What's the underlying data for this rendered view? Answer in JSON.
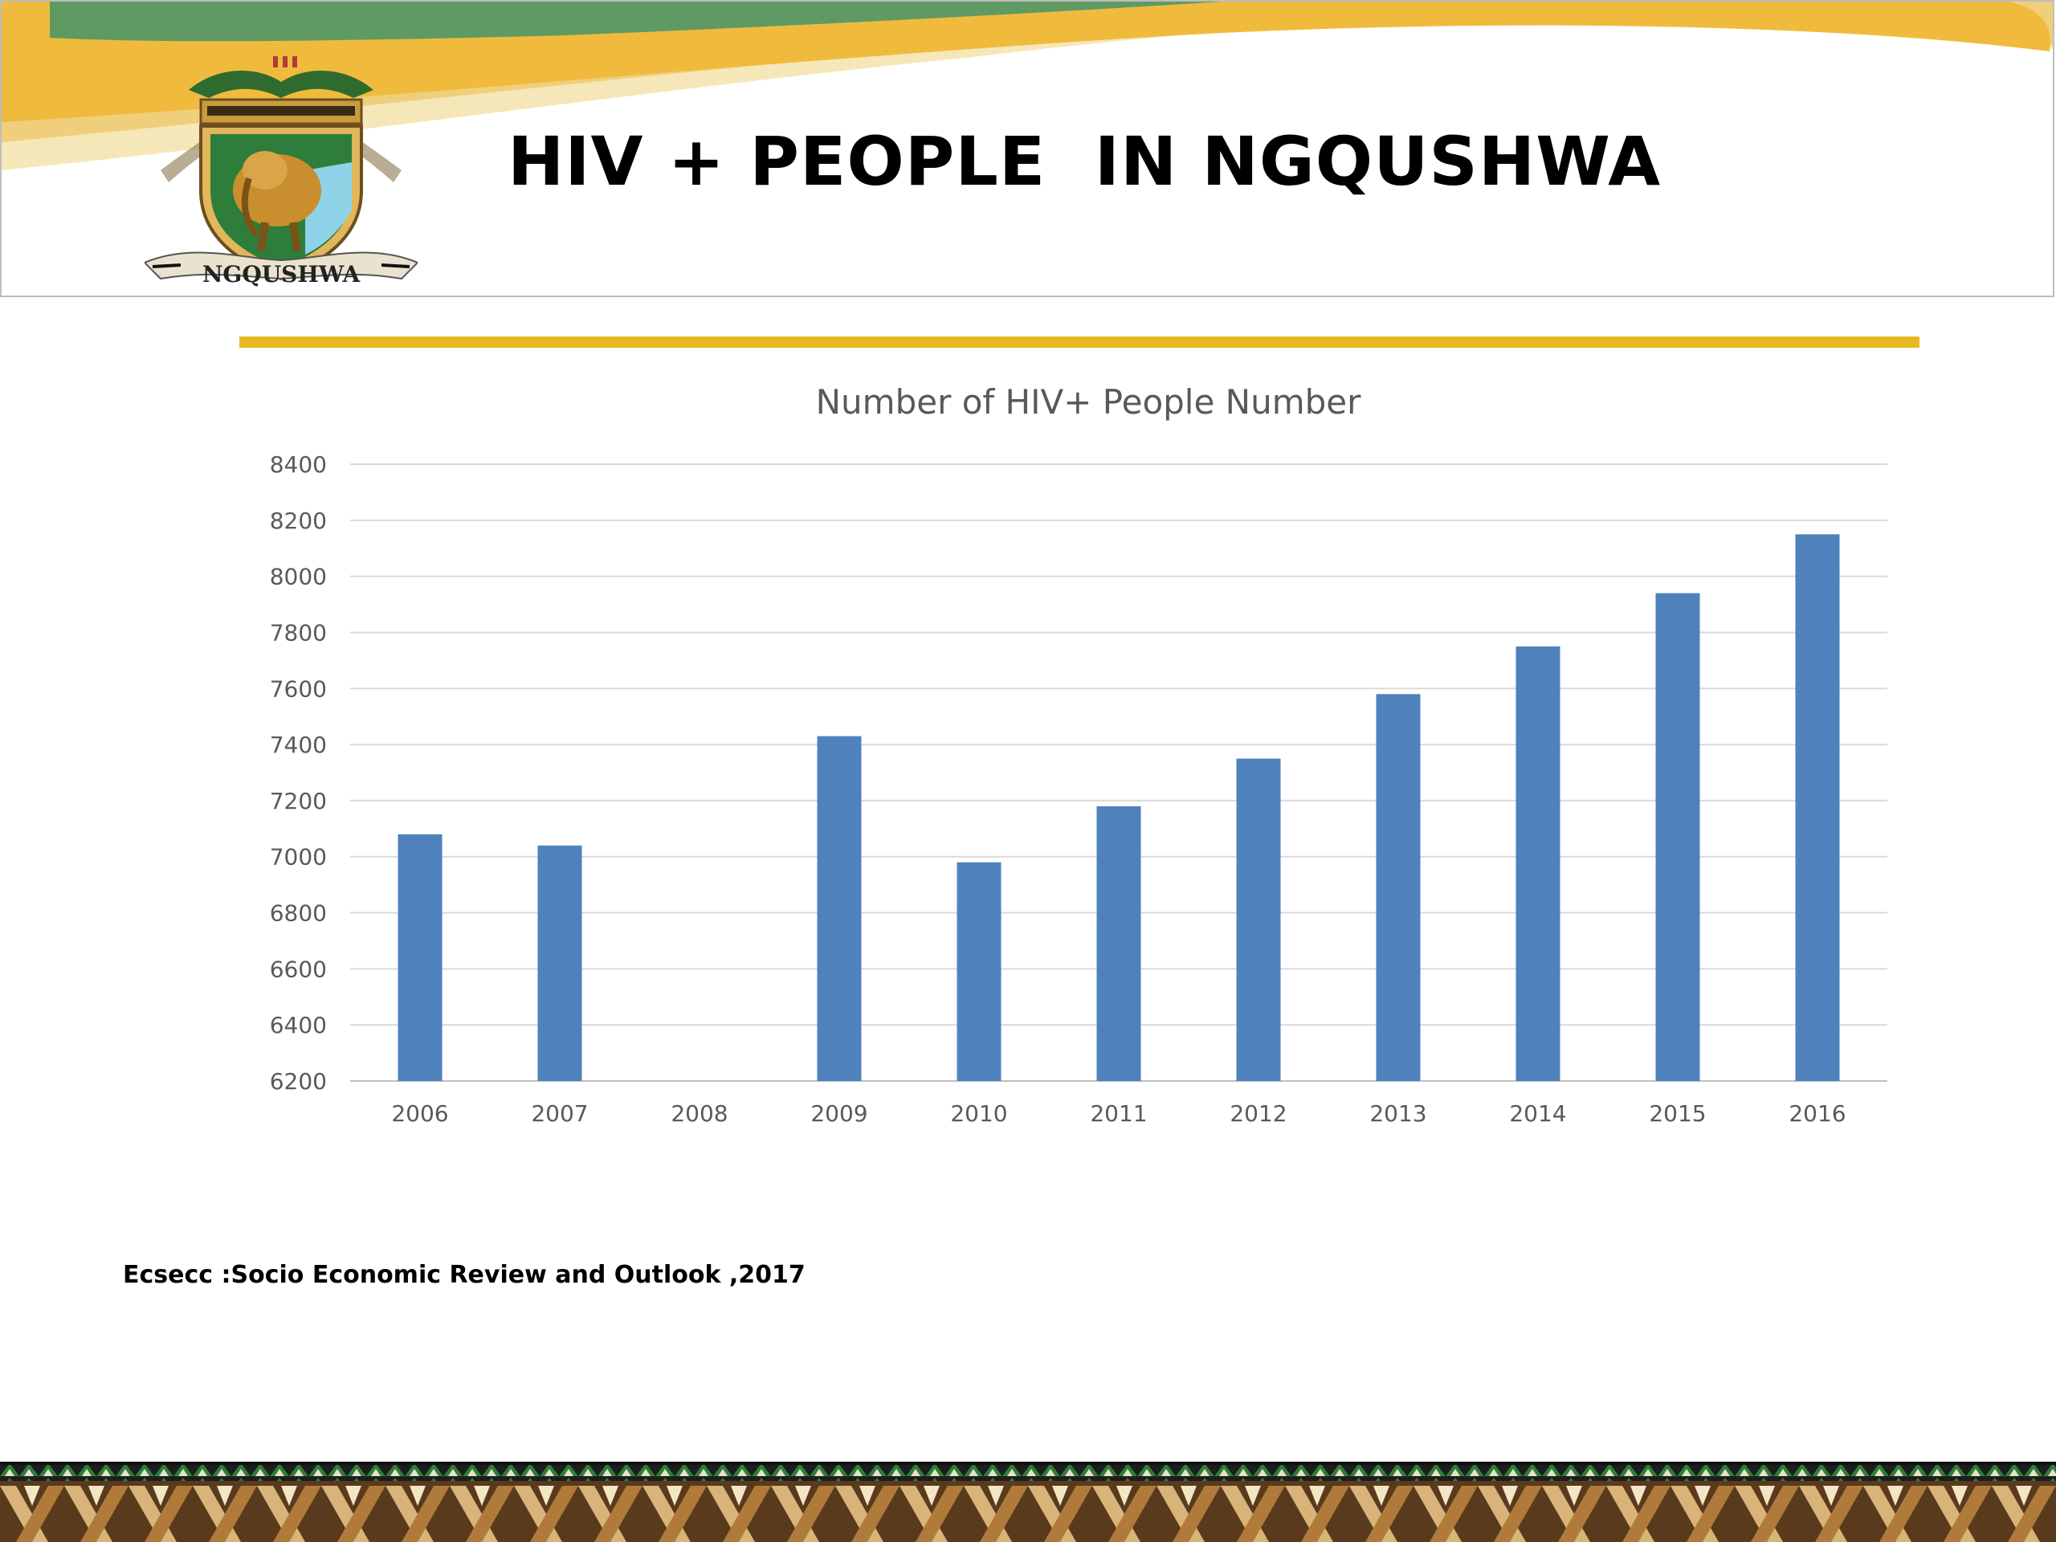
{
  "slide": {
    "title": "HIV + PEOPLE  IN NGQUSHWA",
    "source": "Ecsecc :Socio Economic Review and Outlook ,2017",
    "logo_text": "NGQUSHWA",
    "accent_color": "#e8b821",
    "bar_color": "#4f81bd"
  },
  "chart_data": {
    "type": "bar",
    "title": "Number of HIV+ People  Number",
    "categories": [
      "2006",
      "2007",
      "2008",
      "2009",
      "2010",
      "2011",
      "2012",
      "2013",
      "2014",
      "2015",
      "2016"
    ],
    "values": [
      7080,
      7040,
      null,
      7430,
      6980,
      7180,
      7350,
      7580,
      7750,
      7940,
      8150
    ],
    "ylim": [
      6200,
      8400
    ],
    "yticks": [
      6200,
      6400,
      6600,
      6800,
      7000,
      7200,
      7400,
      7600,
      7800,
      8000,
      8200,
      8400
    ],
    "grid": true
  }
}
